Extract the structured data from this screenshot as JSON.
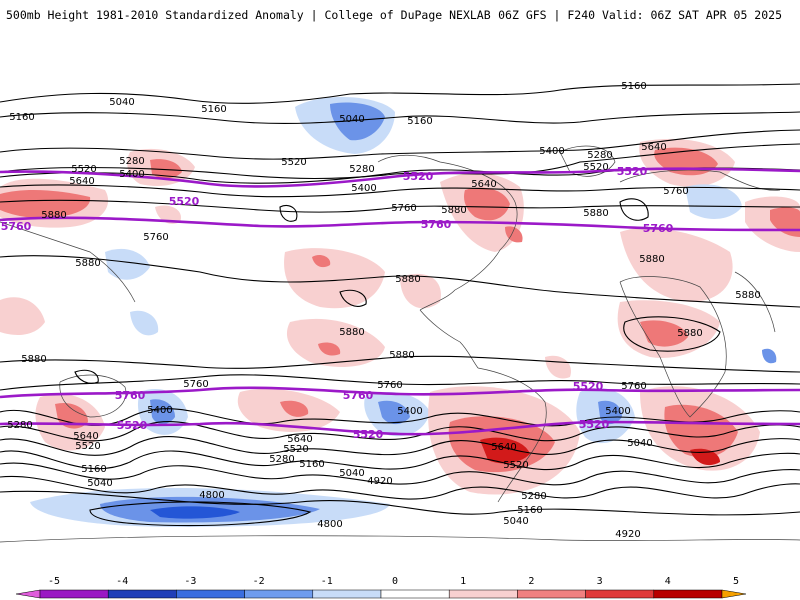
{
  "header": {
    "left_title": "500mb Height 1981-2010 Standardized Anomaly | College of DuPage NEXLAB",
    "right_title": "06Z GFS | F240 Valid: 06Z SAT APR 05 2025"
  },
  "map": {
    "projection": "cylindrical",
    "anomaly_colors": {
      "neg_weak": "#c8dcf8",
      "neg_mid": "#6b93e8",
      "neg_strong": "#2456d6",
      "pos_weak": "#f8d0d0",
      "pos_mid": "#ee7878",
      "pos_strong": "#d21a1a"
    },
    "contour_color": "#000000",
    "highlight_color": "#9b19c8",
    "labels_black": [
      {
        "id": "l5040a",
        "text": "5040"
      },
      {
        "id": "l5160a",
        "text": "5160"
      },
      {
        "id": "l5160b",
        "text": "5160"
      },
      {
        "id": "l5040b",
        "text": "5040"
      },
      {
        "id": "l5160c",
        "text": "5160"
      },
      {
        "id": "l5160d",
        "text": "5160"
      },
      {
        "id": "l5520a",
        "text": "5520"
      },
      {
        "id": "l5280a",
        "text": "5280"
      },
      {
        "id": "l5400a",
        "text": "5400"
      },
      {
        "id": "l5640a",
        "text": "5640"
      },
      {
        "id": "l5520b",
        "text": "5520"
      },
      {
        "id": "l5280b",
        "text": "5280"
      },
      {
        "id": "l5400b",
        "text": "5400"
      },
      {
        "id": "l5640b",
        "text": "5640"
      },
      {
        "id": "l5760a",
        "text": "5760"
      },
      {
        "id": "l5880a",
        "text": "5880"
      },
      {
        "id": "l5400c",
        "text": "5400"
      },
      {
        "id": "l5280c",
        "text": "5280"
      },
      {
        "id": "l5520c",
        "text": "5520"
      },
      {
        "id": "l5640c",
        "text": "5640"
      },
      {
        "id": "l5760b",
        "text": "5760"
      },
      {
        "id": "l5880b",
        "text": "5880"
      },
      {
        "id": "l5760c",
        "text": "5760"
      },
      {
        "id": "l5880c",
        "text": "5880"
      },
      {
        "id": "l5880d",
        "text": "5880"
      },
      {
        "id": "l5880e",
        "text": "5880"
      },
      {
        "id": "l5880f",
        "text": "5880"
      },
      {
        "id": "l5880g",
        "text": "5880"
      },
      {
        "id": "l5880h",
        "text": "5880"
      },
      {
        "id": "l5880i",
        "text": "5880"
      },
      {
        "id": "l5760d",
        "text": "5760"
      },
      {
        "id": "l5760e",
        "text": "5760"
      },
      {
        "id": "l5760f",
        "text": "5760"
      },
      {
        "id": "l5280d",
        "text": "5280"
      },
      {
        "id": "l5400d",
        "text": "5400"
      },
      {
        "id": "l5640d",
        "text": "5640"
      },
      {
        "id": "l5520d",
        "text": "5520"
      },
      {
        "id": "l5160e",
        "text": "5160"
      },
      {
        "id": "l5040c",
        "text": "5040"
      },
      {
        "id": "l5640e",
        "text": "5640"
      },
      {
        "id": "l5520e",
        "text": "5520"
      },
      {
        "id": "l5280e",
        "text": "5280"
      },
      {
        "id": "l5160f",
        "text": "5160"
      },
      {
        "id": "l5400e",
        "text": "5400"
      },
      {
        "id": "l5040d",
        "text": "5040"
      },
      {
        "id": "l4920a",
        "text": "4920"
      },
      {
        "id": "l5640f",
        "text": "5640"
      },
      {
        "id": "l5520f",
        "text": "5520"
      },
      {
        "id": "l5280f",
        "text": "5280"
      },
      {
        "id": "l5160g",
        "text": "5160"
      },
      {
        "id": "l5040e",
        "text": "5040"
      },
      {
        "id": "l5400f",
        "text": "5400"
      },
      {
        "id": "l5040f",
        "text": "5040"
      },
      {
        "id": "l4920b",
        "text": "4920"
      },
      {
        "id": "l4800a",
        "text": "4800"
      },
      {
        "id": "l4800b",
        "text": "4800"
      }
    ],
    "labels_purple": [
      {
        "id": "p5520a",
        "text": "5520"
      },
      {
        "id": "p5520b",
        "text": "5520"
      },
      {
        "id": "p5520c",
        "text": "5520"
      },
      {
        "id": "p5760a",
        "text": "5760"
      },
      {
        "id": "p5760b",
        "text": "5760"
      },
      {
        "id": "p5760c",
        "text": "5760"
      },
      {
        "id": "p5760d",
        "text": "5760"
      },
      {
        "id": "p5760e",
        "text": "5760"
      },
      {
        "id": "p5520d",
        "text": "5520"
      },
      {
        "id": "p5520e",
        "text": "5520"
      },
      {
        "id": "p5520f",
        "text": "5520"
      }
    ]
  },
  "colorbar": {
    "ticks": [
      "-5",
      "-4",
      "-3",
      "-2",
      "-1",
      "0",
      "1",
      "2",
      "3",
      "4",
      "5"
    ],
    "colors": [
      "#e05cdc",
      "#9a19c4",
      "#1f3fb8",
      "#3a6ee0",
      "#6f9cee",
      "#c8dcf8",
      "#ffffff",
      "#f8d0d0",
      "#f08080",
      "#e03a3a",
      "#b80000",
      "#f5a000"
    ]
  }
}
